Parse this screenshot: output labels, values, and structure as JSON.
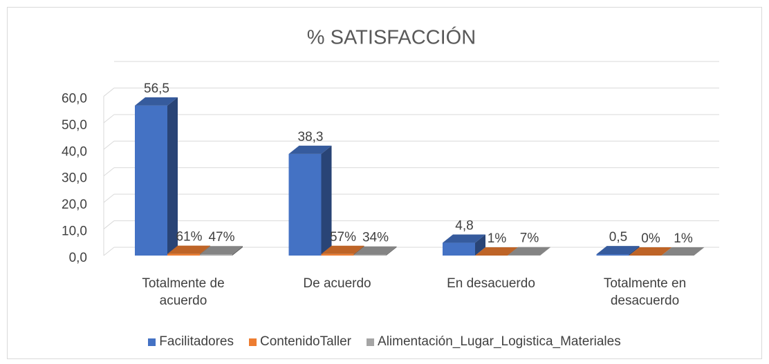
{
  "chart_data": {
    "type": "bar3d",
    "title": "% SATISFACCIÓN",
    "categories": [
      "Totalmente de acuerdo",
      "De acuerdo",
      "En desacuerdo",
      "Totalmente en desacuerdo"
    ],
    "series": [
      {
        "name": "Facilitadores",
        "color": "#4472c4",
        "values": [
          56.5,
          38.3,
          4.8,
          0.5
        ],
        "value_labels": [
          "56,5",
          "38,3",
          "4,8",
          "0,5"
        ]
      },
      {
        "name": "ContenidoTaller",
        "color": "#ed7d31",
        "values": [
          0.61,
          0.57,
          0.01,
          0
        ],
        "value_labels": [
          "61%",
          "57%",
          "1%",
          "0%"
        ]
      },
      {
        "name": "Alimentación_Lugar_Logistica_Materiales",
        "color": "#a5a5a5",
        "values": [
          0.47,
          0.34,
          0.07,
          0.01
        ],
        "value_labels": [
          "47%",
          "34%",
          "7%",
          "1%"
        ]
      }
    ],
    "ylim": [
      0,
      70
    ],
    "yticks": [
      {
        "value": 0,
        "label": "0,0"
      },
      {
        "value": 10,
        "label": "10,0"
      },
      {
        "value": 20,
        "label": "20,0"
      },
      {
        "value": 30,
        "label": "30,0"
      },
      {
        "value": 40,
        "label": "40,0"
      },
      {
        "value": 50,
        "label": "50,0"
      },
      {
        "value": 60,
        "label": "60,0"
      }
    ],
    "grid": true,
    "legend": "bottom"
  }
}
